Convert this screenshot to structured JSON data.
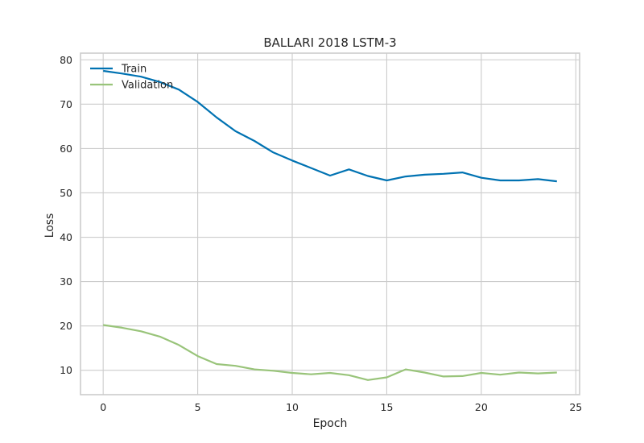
{
  "chart_data": {
    "type": "line",
    "title": "BALLARI 2018 LSTM-3",
    "xlabel": "Epoch",
    "ylabel": "Loss",
    "xlim": [
      -1.2,
      25.2
    ],
    "ylim": [
      4.5,
      81.5
    ],
    "xticks": [
      0,
      5,
      10,
      15,
      20,
      25
    ],
    "yticks": [
      10,
      20,
      30,
      40,
      50,
      60,
      70,
      80
    ],
    "grid": true,
    "legend_position": "top-left",
    "x": [
      0,
      1,
      2,
      3,
      4,
      5,
      6,
      7,
      8,
      9,
      10,
      11,
      12,
      13,
      14,
      15,
      16,
      17,
      18,
      19,
      20,
      21,
      22,
      23,
      24
    ],
    "series": [
      {
        "name": "Train",
        "color": "#0072b2",
        "values": [
          77.5,
          76.9,
          76.2,
          75.0,
          73.3,
          70.5,
          67.0,
          63.9,
          61.7,
          59.1,
          57.3,
          55.6,
          53.9,
          55.3,
          53.8,
          52.8,
          53.7,
          54.1,
          54.3,
          54.6,
          53.4,
          52.8,
          52.8,
          53.1,
          52.6
        ]
      },
      {
        "name": "Validation",
        "color": "#99c47a",
        "values": [
          20.2,
          19.6,
          18.8,
          17.6,
          15.7,
          13.2,
          11.4,
          11.0,
          10.2,
          9.9,
          9.4,
          9.1,
          9.4,
          8.9,
          7.8,
          8.4,
          10.2,
          9.5,
          8.6,
          8.7,
          9.4,
          9.0,
          9.5,
          9.3,
          9.5
        ]
      }
    ]
  }
}
